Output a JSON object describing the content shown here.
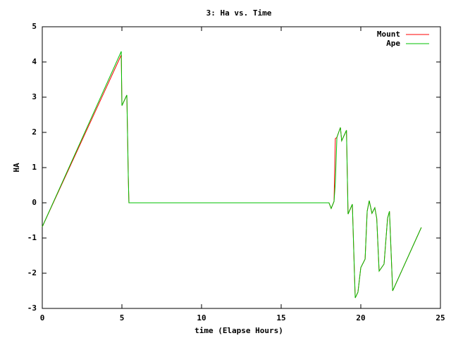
{
  "chart_data": {
    "type": "line",
    "title": "3: Ha vs. Time",
    "x_label": "time (Elapse Hours)",
    "y_label": "HA",
    "x": [
      0,
      4.96,
      5.0,
      5.31,
      5.4,
      5.44,
      18.0,
      18.14,
      18.32,
      18.4,
      18.5,
      18.72,
      18.8,
      19.1,
      19.2,
      19.47,
      19.6,
      19.65,
      19.82,
      20.0,
      20.27,
      20.4,
      20.53,
      20.7,
      20.88,
      21.0,
      21.15,
      21.46,
      21.68,
      21.8,
      22.0,
      23.8
    ],
    "series": [
      {
        "name": "Mount",
        "color": "#ff0000",
        "values": [
          -0.68,
          4.2,
          2.76,
          3.06,
          0.76,
          0,
          0,
          -0.16,
          0.04,
          1.82,
          1.86,
          2.14,
          1.76,
          2.06,
          -0.32,
          -0.04,
          -2.0,
          -2.7,
          -2.54,
          -1.84,
          -1.6,
          -0.24,
          0.06,
          -0.3,
          -0.14,
          -0.44,
          -1.94,
          -1.74,
          -0.44,
          -0.24,
          -2.5,
          -0.7
        ]
      },
      {
        "name": "Ape",
        "color": "#00c000",
        "values": [
          -0.68,
          4.3,
          2.76,
          3.06,
          0.76,
          0,
          0,
          -0.16,
          0.04,
          0.56,
          1.86,
          2.14,
          1.76,
          2.06,
          -0.32,
          -0.04,
          -2.0,
          -2.7,
          -2.54,
          -1.84,
          -1.6,
          -0.24,
          0.06,
          -0.3,
          -0.14,
          -0.44,
          -1.94,
          -1.74,
          -0.44,
          -0.24,
          -2.5,
          -0.7
        ]
      }
    ],
    "xlim": [
      0,
      25
    ],
    "xticks": [
      0,
      5,
      10,
      15,
      20,
      25
    ],
    "ylim": [
      -3,
      5
    ],
    "yticks": [
      -3,
      -2,
      -1,
      0,
      1,
      2,
      3,
      4,
      5
    ],
    "legend": "upper right",
    "grid": false
  }
}
